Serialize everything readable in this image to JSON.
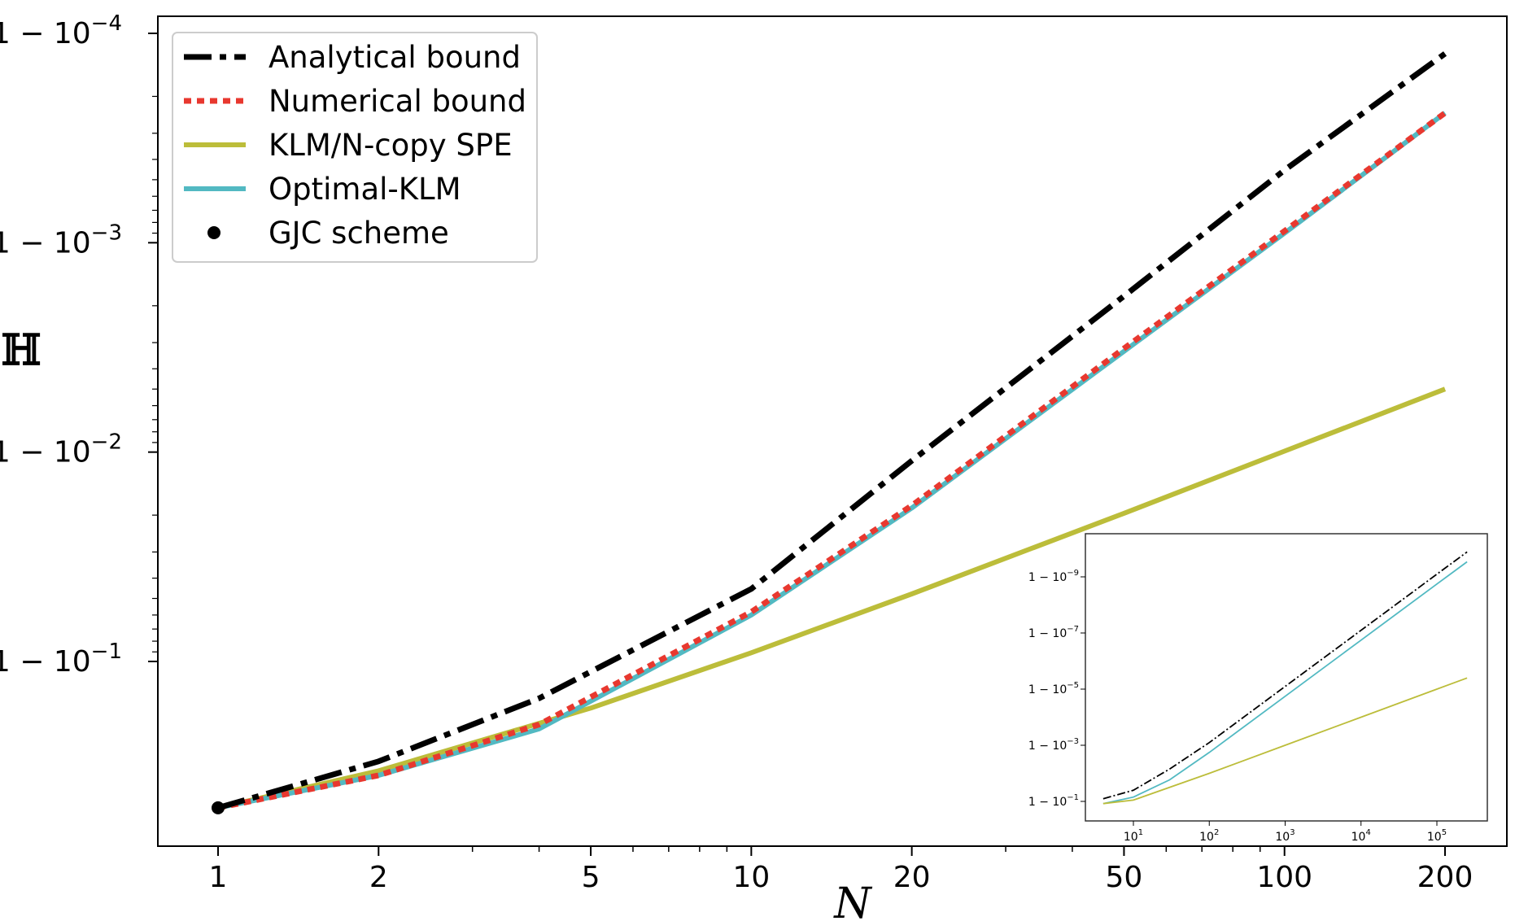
{
  "chart_data": [
    {
      "type": "line",
      "xscale": "log",
      "yscale": "log1m",
      "xlabel": "N",
      "ylabel": "ℍ",
      "xlim": [
        0.89,
        250
      ],
      "ylim_one_minus": [
        0.85,
        6.25e-05
      ],
      "x_ticks": [
        {
          "value": 1,
          "label": "1"
        },
        {
          "value": 2,
          "label": "2"
        },
        {
          "value": 5,
          "label": "5"
        },
        {
          "value": 10,
          "label": "10"
        },
        {
          "value": 20,
          "label": "20"
        },
        {
          "value": 50,
          "label": "50"
        },
        {
          "value": 100,
          "label": "100"
        },
        {
          "value": 200,
          "label": "200"
        }
      ],
      "y_ticks": [
        {
          "one_minus": 0.0001,
          "base": "1 − 10",
          "exp": "−4"
        },
        {
          "one_minus": 0.001,
          "base": "1 − 10",
          "exp": "−3"
        },
        {
          "one_minus": 0.01,
          "base": "1 − 10",
          "exp": "−2"
        },
        {
          "one_minus": 0.1,
          "base": "1 − 10",
          "exp": "−1"
        }
      ],
      "legend": {
        "position": "top-left"
      },
      "series": [
        {
          "name": "Analytical bound",
          "style": "dashdot",
          "color": "#000000",
          "x": [
            1,
            2,
            4,
            10,
            20,
            50,
            100,
            200
          ],
          "one_minus_y": [
            0.5,
            0.3,
            0.15,
            0.045,
            0.011,
            0.0018,
            0.00045,
            0.000125
          ]
        },
        {
          "name": "Numerical bound",
          "style": "dotted",
          "color": "#e8382f",
          "x": [
            1,
            2,
            4,
            10,
            20,
            50,
            100,
            200
          ],
          "one_minus_y": [
            0.5,
            0.35,
            0.2,
            0.058,
            0.018,
            0.0032,
            0.00088,
            0.00024
          ]
        },
        {
          "name": "KLM/N-copy SPE",
          "style": "solid",
          "color": "#bcbd3a",
          "x": [
            1,
            2,
            5,
            10,
            20,
            50,
            100,
            200
          ],
          "one_minus_y": [
            0.5,
            0.333,
            0.167,
            0.0909,
            0.0476,
            0.0196,
            0.0099,
            0.005
          ]
        },
        {
          "name": "Optimal-KLM",
          "style": "solid",
          "color": "#52b9c2",
          "x": [
            1,
            2,
            4,
            10,
            20,
            50,
            100,
            200
          ],
          "one_minus_y": [
            0.5,
            0.35,
            0.21,
            0.06,
            0.0185,
            0.0033,
            0.0009,
            0.00024
          ]
        }
      ],
      "points": [
        {
          "name": "GJC scheme",
          "x": 1,
          "one_minus_y": 0.5,
          "color": "#000000"
        }
      ]
    },
    {
      "type": "line",
      "role": "inset",
      "xscale": "log",
      "yscale": "log1m",
      "x_ticks": [
        {
          "value": 10,
          "base": "10",
          "exp": "1"
        },
        {
          "value": 100,
          "base": "10",
          "exp": "2"
        },
        {
          "value": 1000,
          "base": "10",
          "exp": "3"
        },
        {
          "value": 10000,
          "base": "10",
          "exp": "4"
        },
        {
          "value": 100000,
          "base": "10",
          "exp": "5"
        }
      ],
      "y_ticks": [
        {
          "one_minus": 1e-09,
          "base": "1 − 10",
          "exp": "−9"
        },
        {
          "one_minus": 1e-07,
          "base": "1 − 10",
          "exp": "−7"
        },
        {
          "one_minus": 1e-05,
          "base": "1 − 10",
          "exp": "−5"
        },
        {
          "one_minus": 0.001,
          "base": "1 − 10",
          "exp": "−3"
        },
        {
          "one_minus": 0.1,
          "base": "1 − 10",
          "exp": "−1"
        }
      ],
      "series": [
        {
          "style": "dashdot",
          "color": "#000000",
          "x": [
            4,
            10,
            30,
            100,
            1000,
            10000,
            100000,
            250000
          ],
          "one_minus_y": [
            0.08,
            0.04,
            0.007,
            0.0008,
            8e-06,
            8e-08,
            8e-10,
            1.3e-10
          ]
        },
        {
          "style": "solid",
          "color": "#52b9c2",
          "x": [
            4,
            10,
            30,
            100,
            1000,
            10000,
            100000,
            250000
          ],
          "one_minus_y": [
            0.12,
            0.07,
            0.017,
            0.0018,
            1.8e-05,
            1.8e-07,
            1.8e-09,
            2.9e-10
          ]
        },
        {
          "style": "solid",
          "color": "#bcbd3a",
          "x": [
            4,
            10,
            100,
            1000,
            10000,
            100000,
            250000
          ],
          "one_minus_y": [
            0.12,
            0.09,
            0.01,
            0.001,
            0.0001,
            1e-05,
            4e-06
          ]
        }
      ]
    }
  ]
}
